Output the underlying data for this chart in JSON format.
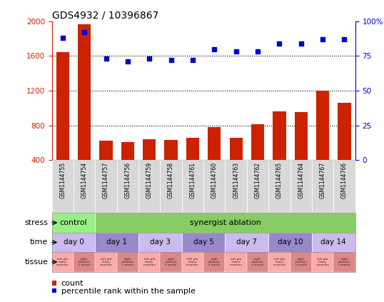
{
  "title": "GDS4932 / 10396867",
  "samples": [
    "GSM1144755",
    "GSM1144754",
    "GSM1144757",
    "GSM1144756",
    "GSM1144759",
    "GSM1144758",
    "GSM1144761",
    "GSM1144760",
    "GSM1144763",
    "GSM1144762",
    "GSM1144765",
    "GSM1144764",
    "GSM1144767",
    "GSM1144766"
  ],
  "counts": [
    1640,
    1960,
    620,
    610,
    640,
    630,
    660,
    780,
    660,
    810,
    960,
    950,
    1200,
    1060
  ],
  "percentiles": [
    88,
    92,
    73,
    71,
    73,
    72,
    72,
    80,
    78,
    78,
    84,
    84,
    87,
    87
  ],
  "bar_color": "#cc2200",
  "dot_color": "#0000cc",
  "ylim_left": [
    400,
    2000
  ],
  "ylim_right": [
    0,
    100
  ],
  "yticks_left": [
    400,
    800,
    1200,
    1600,
    2000
  ],
  "yticks_right": [
    0,
    25,
    50,
    75,
    100
  ],
  "ytick_labels_right": [
    "0",
    "25",
    "50",
    "75",
    "100%"
  ],
  "stress_control_label": "control",
  "stress_ablation_label": "synergist ablation",
  "stress_control_color": "#99ee88",
  "stress_ablation_color": "#88cc66",
  "time_labels": [
    "day 0",
    "day 1",
    "day 3",
    "day 5",
    "day 7",
    "day 10",
    "day 14"
  ],
  "time_color_light": "#ccbbee",
  "time_color_dark": "#9988cc",
  "tissue_left_color": "#ffaaaa",
  "tissue_right_color": "#dd8888",
  "legend_count_label": "count",
  "legend_pct_label": "percentile rank within the sample",
  "axis_color_left": "#cc2200",
  "axis_color_right": "#0000cc"
}
